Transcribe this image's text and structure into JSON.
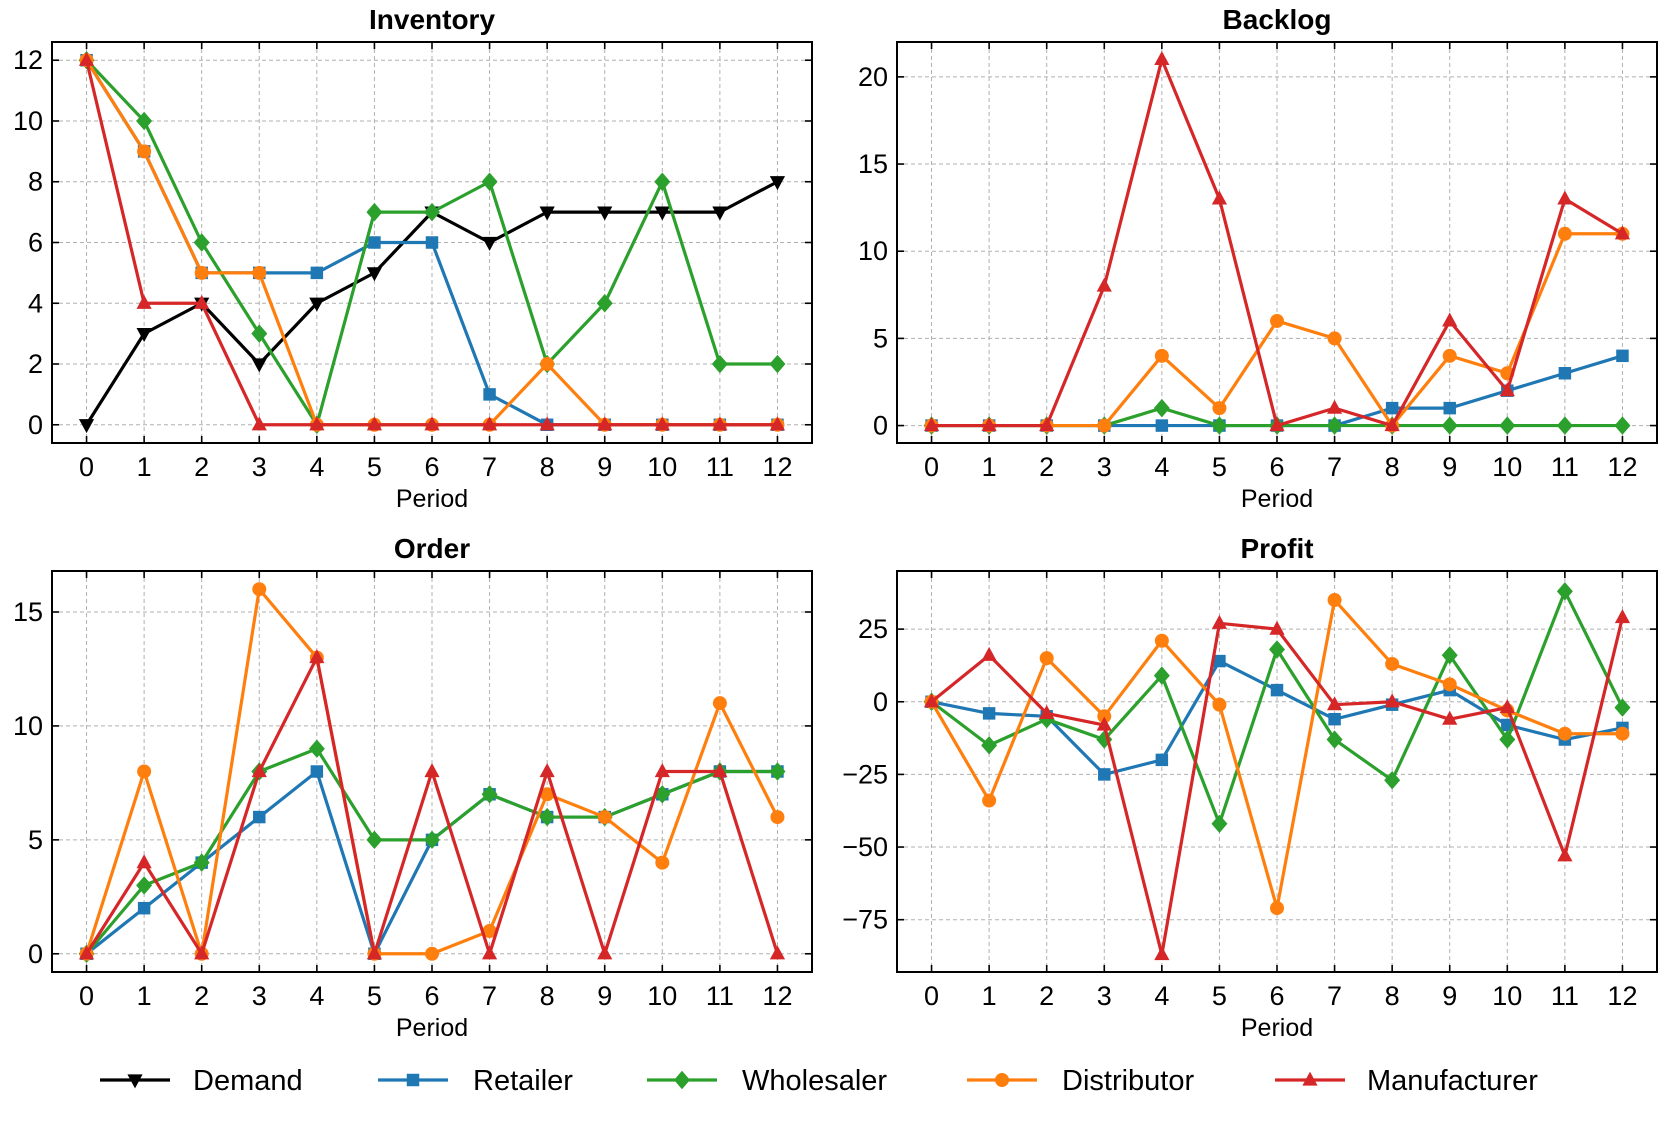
{
  "chart_data": [
    {
      "type": "line",
      "title": "Inventory",
      "xlabel": "Period",
      "ylabel": "",
      "x": [
        0,
        1,
        2,
        3,
        4,
        5,
        6,
        7,
        8,
        9,
        10,
        11,
        12
      ],
      "xlim": [
        -0.6,
        12.6
      ],
      "ylim": [
        -0.6,
        12.6
      ],
      "yticks": [
        0,
        2,
        4,
        6,
        8,
        10,
        12
      ],
      "grid": true,
      "series": [
        {
          "name": "Demand",
          "values": [
            0,
            3,
            4,
            2,
            4,
            5,
            7,
            6,
            7,
            7,
            7,
            7,
            8
          ]
        },
        {
          "name": "Retailer",
          "values": [
            12,
            9,
            5,
            5,
            5,
            6,
            6,
            1,
            0,
            0,
            0,
            0,
            0
          ]
        },
        {
          "name": "Wholesaler",
          "values": [
            12,
            10,
            6,
            3,
            0,
            7,
            7,
            8,
            2,
            4,
            8,
            2,
            2
          ]
        },
        {
          "name": "Distributor",
          "values": [
            12,
            9,
            5,
            5,
            0,
            0,
            0,
            0,
            2,
            0,
            0,
            0,
            0
          ]
        },
        {
          "name": "Manufacturer",
          "values": [
            12,
            4,
            4,
            0,
            0,
            0,
            0,
            0,
            0,
            0,
            0,
            0,
            0
          ]
        }
      ]
    },
    {
      "type": "line",
      "title": "Backlog",
      "xlabel": "Period",
      "ylabel": "",
      "x": [
        0,
        1,
        2,
        3,
        4,
        5,
        6,
        7,
        8,
        9,
        10,
        11,
        12
      ],
      "xlim": [
        -0.6,
        12.6
      ],
      "ylim": [
        -1.0,
        22.0
      ],
      "yticks": [
        0,
        5,
        10,
        15,
        20
      ],
      "grid": true,
      "series": [
        {
          "name": "Retailer",
          "values": [
            0,
            0,
            0,
            0,
            0,
            0,
            0,
            0,
            1,
            1,
            2,
            3,
            4
          ]
        },
        {
          "name": "Wholesaler",
          "values": [
            0,
            0,
            0,
            0,
            1,
            0,
            0,
            0,
            0,
            0,
            0,
            0,
            0
          ]
        },
        {
          "name": "Distributor",
          "values": [
            0,
            0,
            0,
            0,
            4,
            1,
            6,
            5,
            0,
            4,
            3,
            11,
            11
          ]
        },
        {
          "name": "Manufacturer",
          "values": [
            0,
            0,
            0,
            8,
            21,
            13,
            0,
            1,
            0,
            6,
            2,
            13,
            11
          ]
        }
      ]
    },
    {
      "type": "line",
      "title": "Order",
      "xlabel": "Period",
      "ylabel": "",
      "x": [
        0,
        1,
        2,
        3,
        4,
        5,
        6,
        7,
        8,
        9,
        10,
        11,
        12
      ],
      "xlim": [
        -0.6,
        12.6
      ],
      "ylim": [
        -0.8,
        16.8
      ],
      "yticks": [
        0,
        5,
        10,
        15
      ],
      "grid": true,
      "series": [
        {
          "name": "Retailer",
          "values": [
            0,
            2,
            4,
            6,
            8,
            0,
            5,
            7,
            6,
            6,
            7,
            8,
            8
          ]
        },
        {
          "name": "Wholesaler",
          "values": [
            0,
            3,
            4,
            8,
            9,
            5,
            5,
            7,
            6,
            6,
            7,
            8,
            8
          ]
        },
        {
          "name": "Distributor",
          "values": [
            0,
            8,
            0,
            16,
            13,
            0,
            0,
            1,
            7,
            6,
            4,
            11,
            6
          ]
        },
        {
          "name": "Manufacturer",
          "values": [
            0,
            4,
            0,
            8,
            13,
            0,
            8,
            0,
            8,
            0,
            8,
            8,
            0
          ]
        }
      ]
    },
    {
      "type": "line",
      "title": "Profit",
      "xlabel": "Period",
      "ylabel": "",
      "x": [
        0,
        1,
        2,
        3,
        4,
        5,
        6,
        7,
        8,
        9,
        10,
        11,
        12
      ],
      "xlim": [
        -0.6,
        12.6
      ],
      "ylim": [
        -93,
        45
      ],
      "yticks": [
        -75,
        -50,
        -25,
        0,
        25
      ],
      "ytick_labels": [
        "−75",
        "−50",
        "−25",
        "0",
        "25"
      ],
      "grid": true,
      "series": [
        {
          "name": "Retailer",
          "values": [
            0,
            -4,
            -5,
            -25,
            -20,
            14,
            4,
            -6,
            -1,
            4,
            -8,
            -13,
            -9
          ]
        },
        {
          "name": "Wholesaler",
          "values": [
            0,
            -15,
            -6,
            -13,
            9,
            -42,
            18,
            -13,
            -27,
            16,
            -13,
            38,
            -2
          ]
        },
        {
          "name": "Distributor",
          "values": [
            0,
            -34,
            15,
            -5,
            21,
            -1,
            -71,
            35,
            13,
            6,
            -3,
            -11,
            -11
          ]
        },
        {
          "name": "Manufacturer",
          "values": [
            0,
            16,
            -4,
            -8,
            -87,
            27,
            25,
            -1,
            0,
            -6,
            -2,
            -53,
            29
          ]
        }
      ]
    }
  ],
  "legend": {
    "placement": "bottom",
    "entries": [
      {
        "name": "Demand",
        "color": "#000000",
        "marker": "triangle-down"
      },
      {
        "name": "Retailer",
        "color": "#1f77b4",
        "marker": "square"
      },
      {
        "name": "Wholesaler",
        "color": "#2ca02c",
        "marker": "diamond"
      },
      {
        "name": "Distributor",
        "color": "#ff7f0e",
        "marker": "circle"
      },
      {
        "name": "Manufacturer",
        "color": "#d62728",
        "marker": "triangle-up"
      }
    ]
  }
}
